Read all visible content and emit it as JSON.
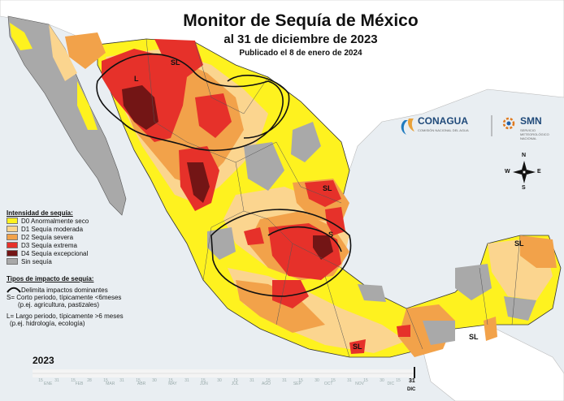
{
  "title": "Monitor de Sequía de México",
  "subtitle": "al 31 de diciembre de 2023",
  "published": "Publicado el 8 de enero de 2024",
  "legend_intensity": {
    "title": "Intensidad de sequía:",
    "items": [
      {
        "label": "D0 Anormalmente seco",
        "color": "#fef21f"
      },
      {
        "label": "D1 Sequía moderada",
        "color": "#fbd58f"
      },
      {
        "label": "D2 Sequía severa",
        "color": "#f2a24a"
      },
      {
        "label": "D3 Sequía extrema",
        "color": "#e6312a"
      },
      {
        "label": "D4 Sequía excepcional",
        "color": "#731515"
      },
      {
        "label": "Sin sequía",
        "color": "#a9a9a9"
      }
    ]
  },
  "legend_impact": {
    "title": "Tipos de impacto de sequía:",
    "line_label": "Delimita impactos dominantes",
    "s_line1": "S= Corto periodo, típicamente <6meses",
    "s_line2": "(p.ej. agricultura, pastizales)",
    "l_line1": "L= Largo periodo, típicamente >6 meses",
    "l_line2": "(p.ej. hidrología, ecología)"
  },
  "map_labels": {
    "sl_north": "SL",
    "l_north": "L",
    "sl_tamaulipas": "SL",
    "s_center": "S",
    "sl_yucatan": "SL",
    "sl_qroo": "SL",
    "sl_oaxaca": "SL"
  },
  "logos": {
    "conagua": "CONAGUA",
    "conagua_sub": "COMISIÓN NACIONAL DEL AGUA",
    "smn": "SMN",
    "smn_sub": "SERVICIO METEOROLÓGICO NACIONAL"
  },
  "compass": {
    "n": "N",
    "s": "S",
    "e": "E",
    "w": "W"
  },
  "timeline": {
    "year": "2023",
    "months": [
      "ENE",
      "FEB",
      "MAR",
      "ABR",
      "MAY",
      "JUN",
      "JUL",
      "AGO",
      "SEP",
      "OCT",
      "NOV",
      "DIC"
    ],
    "days": [
      "15",
      "31",
      "15",
      "28",
      "15",
      "31",
      "15",
      "30",
      "15",
      "31",
      "15",
      "30",
      "15",
      "31",
      "15",
      "31",
      "15",
      "30",
      "15",
      "31",
      "15",
      "30",
      "15"
    ],
    "end_day": "31",
    "end_month": "DIC"
  },
  "colors": {
    "D0": "#fef21f",
    "D1": "#fbd58f",
    "D2": "#f2a24a",
    "D3": "#e6312a",
    "D4": "#731515",
    "none": "#a9a9a9",
    "land_us": "#ffffff",
    "sea": "#e9eef2"
  }
}
